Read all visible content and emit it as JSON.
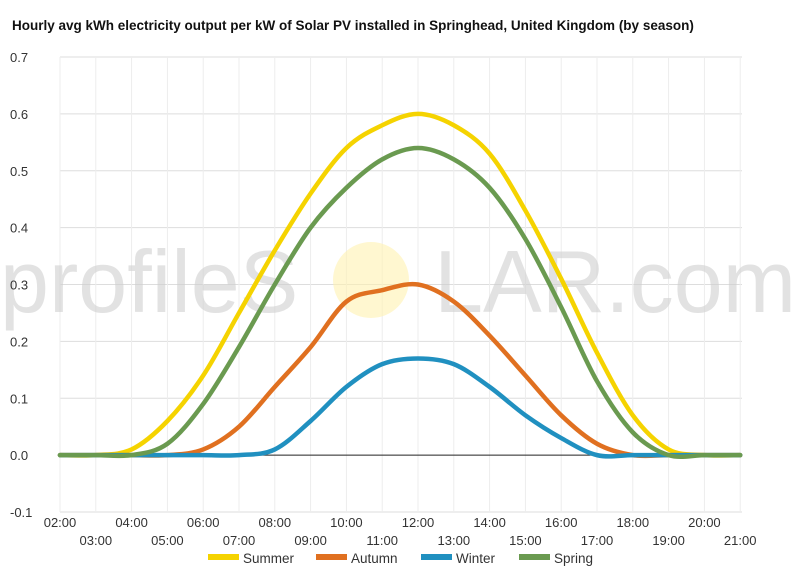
{
  "chart_data": {
    "type": "line",
    "title": "Hourly avg kWh electricity output per kW of Solar PV installed in Springhead, United Kingdom (by season)",
    "xlabel": "",
    "ylabel": "",
    "x": [
      "02:00",
      "03:00",
      "04:00",
      "05:00",
      "06:00",
      "07:00",
      "08:00",
      "09:00",
      "10:00",
      "11:00",
      "12:00",
      "13:00",
      "14:00",
      "15:00",
      "16:00",
      "17:00",
      "18:00",
      "19:00",
      "20:00",
      "21:00"
    ],
    "ylim": [
      -0.1,
      0.7
    ],
    "yticks": [
      "-0.1",
      "0.0",
      "0.1",
      "0.2",
      "0.3",
      "0.4",
      "0.5",
      "0.6",
      "0.7"
    ],
    "grid": true,
    "legend_position": "bottom",
    "watermark": {
      "left": "profileS",
      "right": "LAR.com"
    },
    "series": [
      {
        "name": "Summer",
        "color": "#f5d300",
        "values": [
          0,
          0,
          0.01,
          0.06,
          0.14,
          0.25,
          0.36,
          0.46,
          0.54,
          0.58,
          0.6,
          0.58,
          0.53,
          0.43,
          0.31,
          0.18,
          0.07,
          0.01,
          0,
          0
        ]
      },
      {
        "name": "Autumn",
        "color": "#e07020",
        "values": [
          0,
          0,
          0,
          0,
          0.01,
          0.05,
          0.12,
          0.19,
          0.27,
          0.29,
          0.3,
          0.27,
          0.21,
          0.14,
          0.07,
          0.02,
          0,
          0,
          0,
          0
        ]
      },
      {
        "name": "Winter",
        "color": "#2090c0",
        "values": [
          0,
          0,
          0,
          0,
          0,
          0,
          0.01,
          0.06,
          0.12,
          0.16,
          0.17,
          0.16,
          0.12,
          0.07,
          0.03,
          0,
          0,
          0,
          0,
          0
        ]
      },
      {
        "name": "Spring",
        "color": "#6a9a50",
        "values": [
          0,
          0,
          0,
          0.02,
          0.09,
          0.19,
          0.3,
          0.4,
          0.47,
          0.52,
          0.54,
          0.52,
          0.47,
          0.38,
          0.26,
          0.13,
          0.04,
          0,
          0,
          0
        ]
      }
    ]
  }
}
